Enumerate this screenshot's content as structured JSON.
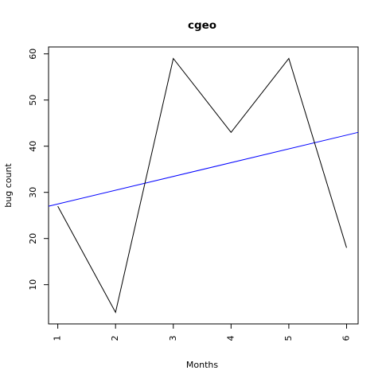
{
  "chart_data": {
    "type": "line",
    "title": "cgeo",
    "xlabel": "Months",
    "ylabel": "bug count",
    "x": [
      1,
      2,
      3,
      4,
      5,
      6
    ],
    "series": [
      {
        "values": [
          27,
          4,
          59,
          43,
          59,
          18
        ],
        "color": "#000000"
      }
    ],
    "trend_line": {
      "color": "#0000ff",
      "start": [
        0.84,
        27
      ],
      "end": [
        6.2,
        43
      ]
    },
    "xlim": [
      0.84,
      6.2
    ],
    "ylim": [
      1.5,
      61.5
    ],
    "xticks": [
      1,
      2,
      3,
      4,
      5,
      6
    ],
    "yticks": [
      10,
      20,
      30,
      40,
      50,
      60
    ],
    "grid": false,
    "legend": "none"
  }
}
